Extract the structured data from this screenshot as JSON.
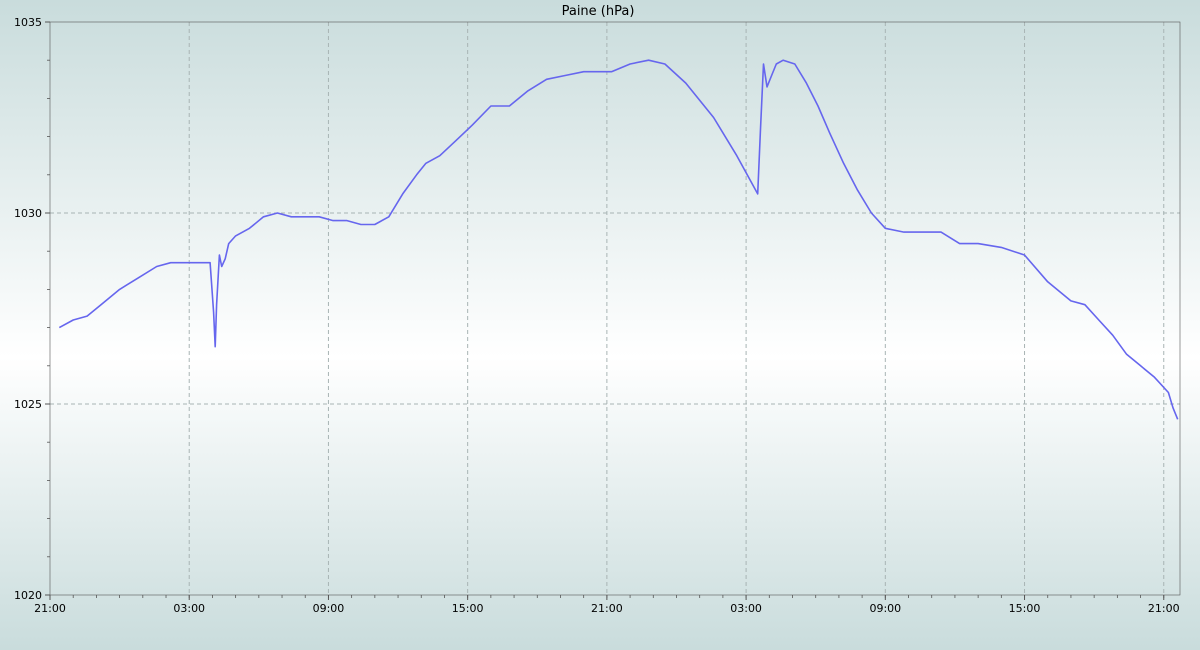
{
  "chart_data": {
    "type": "line",
    "title": "Paine (hPa)",
    "xlabel": "",
    "ylabel": "",
    "x_unit": "hours since first tick (21:00)",
    "xlim": [
      0,
      48.7
    ],
    "ylim": [
      1020,
      1035
    ],
    "y_ticks": [
      1020,
      1025,
      1030,
      1035
    ],
    "x_tick_labels": [
      "21:00",
      "03:00",
      "09:00",
      "15:00",
      "21:00",
      "03:00",
      "09:00",
      "15:00",
      "21:00",
      "03:00",
      "09:00",
      "15:00",
      "21:00"
    ],
    "grid": true,
    "colors": {
      "line": "#6666ee",
      "grid": "#a8b4b4",
      "axis": "#555555",
      "bg_edge": "#c9dcdc",
      "bg_center": "#ffffff"
    },
    "series": [
      {
        "name": "",
        "x": [
          0.4,
          1.0,
          1.6,
          2.2,
          3.0,
          3.8,
          4.6,
          5.2,
          5.6,
          6.0,
          6.5,
          6.9,
          7.05,
          7.12,
          7.18,
          7.3,
          7.4,
          7.55,
          7.7,
          8.0,
          8.6,
          9.2,
          9.8,
          10.4,
          11.0,
          11.6,
          12.2,
          12.8,
          13.4,
          14.0,
          14.6,
          15.2,
          15.8,
          16.2,
          16.8,
          17.5,
          18.2,
          19.0,
          19.8,
          20.6,
          21.4,
          22.2,
          23.0,
          23.6,
          24.2,
          25.0,
          25.8,
          26.5,
          27.4,
          28.6,
          29.6,
          30.5,
          30.62,
          30.75,
          30.9,
          31.1,
          31.3,
          31.6,
          32.1,
          32.6,
          33.1,
          33.6,
          34.2,
          34.8,
          35.4,
          36.0,
          36.8,
          37.6,
          38.4,
          39.2,
          40.0,
          41.0,
          42.0,
          43.0,
          44.0,
          44.6,
          45.2,
          45.8,
          46.4,
          47.0,
          47.6,
          48.2,
          48.4,
          48.6
        ],
        "values": [
          1027.0,
          1027.2,
          1027.3,
          1027.6,
          1028.0,
          1028.3,
          1028.6,
          1028.7,
          1028.7,
          1028.7,
          1028.7,
          1028.7,
          1027.4,
          1026.5,
          1027.6,
          1028.9,
          1028.6,
          1028.8,
          1029.2,
          1029.4,
          1029.6,
          1029.9,
          1030.0,
          1029.9,
          1029.9,
          1029.9,
          1029.8,
          1029.8,
          1029.7,
          1029.7,
          1029.9,
          1030.5,
          1031.0,
          1031.3,
          1031.5,
          1031.9,
          1032.3,
          1032.8,
          1032.8,
          1033.2,
          1033.5,
          1033.6,
          1033.7,
          1033.7,
          1033.7,
          1033.9,
          1034.0,
          1033.9,
          1033.4,
          1032.5,
          1031.5,
          1030.5,
          1032.2,
          1033.9,
          1033.3,
          1033.6,
          1033.9,
          1034.0,
          1033.9,
          1033.4,
          1032.8,
          1032.1,
          1031.3,
          1030.6,
          1030.0,
          1029.6,
          1029.5,
          1029.5,
          1029.5,
          1029.2,
          1029.2,
          1029.1,
          1028.9,
          1028.2,
          1027.7,
          1027.6,
          1027.2,
          1026.8,
          1026.3,
          1026.0,
          1025.7,
          1025.3,
          1024.9,
          1024.6
        ]
      }
    ]
  }
}
